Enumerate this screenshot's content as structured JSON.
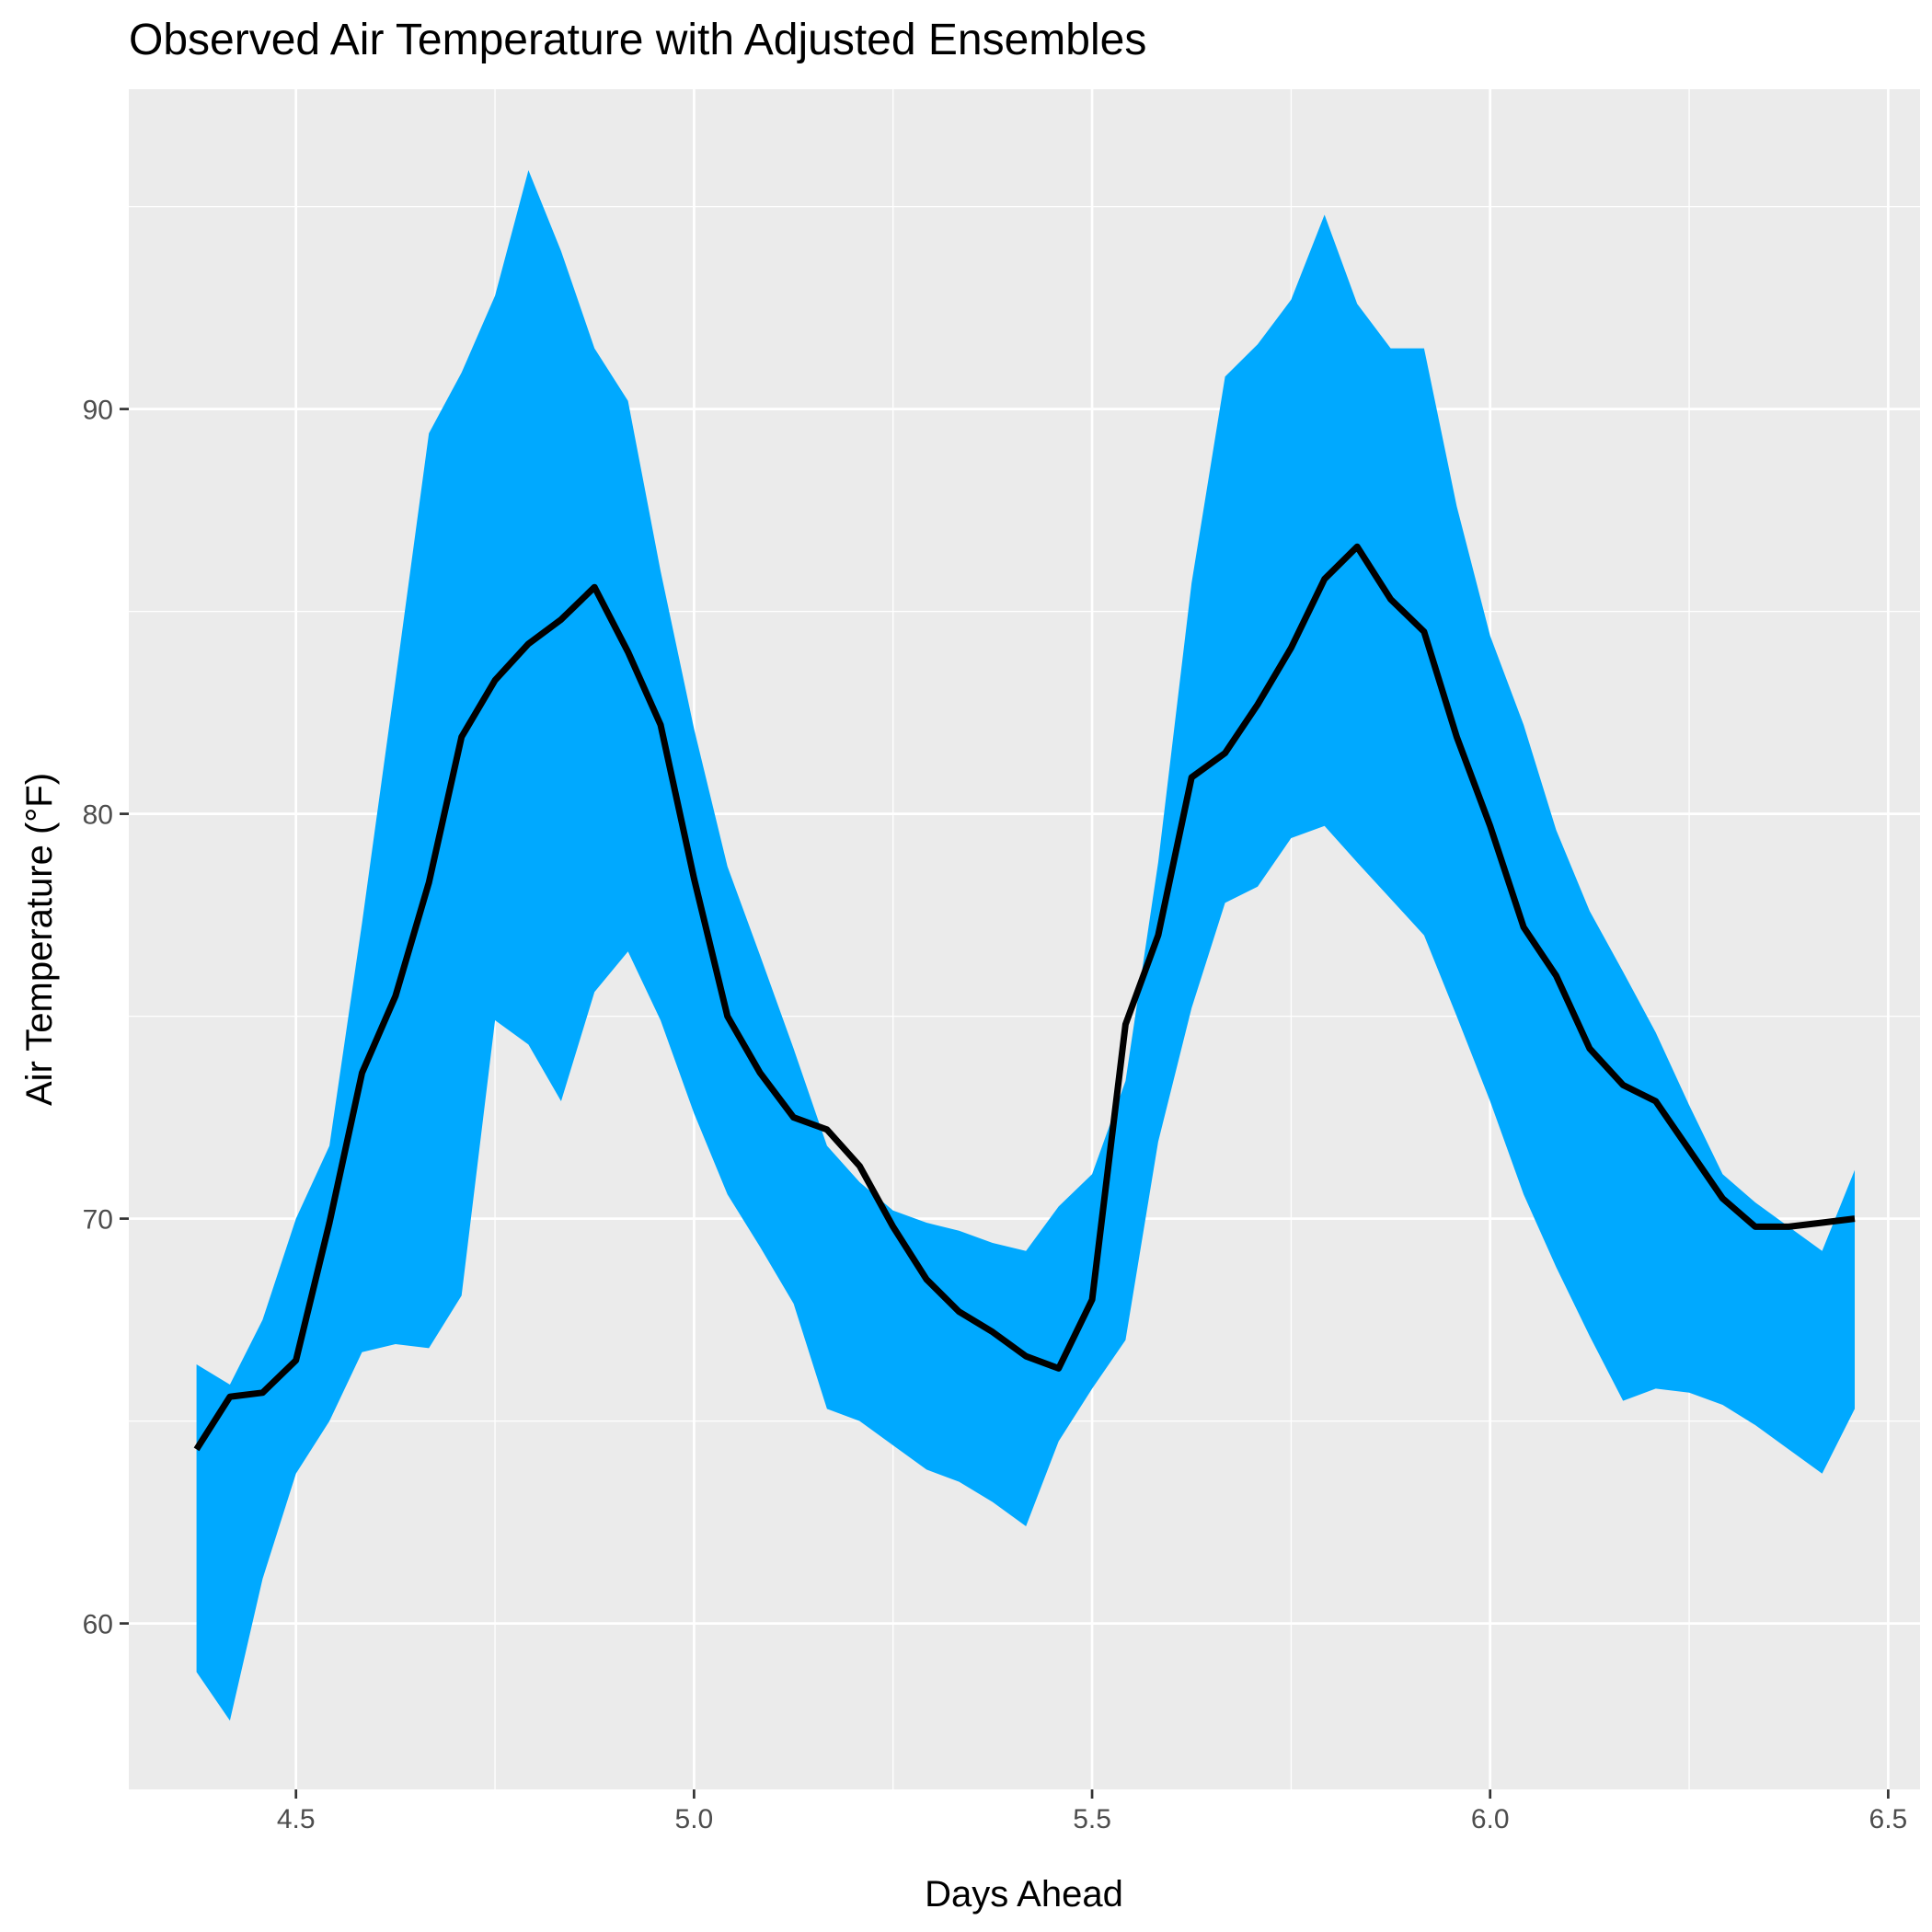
{
  "chart_data": {
    "type": "area",
    "title": "Observed Air Temperature with Adjusted Ensembles",
    "xlabel": "Days Ahead",
    "ylabel": "Air Temperature (°F)",
    "xlim": [
      4.29,
      6.54
    ],
    "ylim": [
      55.9,
      97.9
    ],
    "x_ticks": [
      4.5,
      5.0,
      5.5,
      6.0,
      6.5
    ],
    "x_tick_labels": [
      "4.5",
      "5.0",
      "5.5",
      "6.0",
      "6.5"
    ],
    "y_ticks": [
      60,
      70,
      80,
      90
    ],
    "y_tick_labels": [
      "60",
      "70",
      "80",
      "90"
    ],
    "grid": true,
    "legend": "none",
    "colors": {
      "panel": "#ebebeb",
      "grid": "#ffffff",
      "band": "#00a9ff",
      "line": "#000000",
      "tick_text": "#4d4d4d",
      "tick_mark": "#333333"
    },
    "band": {
      "name": "Adjusted Ensembles",
      "x": [
        4.375,
        4.417,
        4.458,
        4.5,
        4.542,
        4.583,
        4.625,
        4.667,
        4.708,
        4.75,
        4.792,
        4.833,
        4.875,
        4.917,
        4.958,
        5.0,
        5.042,
        5.083,
        5.125,
        5.167,
        5.208,
        5.25,
        5.292,
        5.333,
        5.375,
        5.417,
        5.458,
        5.5,
        5.542,
        5.583,
        5.625,
        5.667,
        5.708,
        5.75,
        5.792,
        5.833,
        5.875,
        5.917,
        5.958,
        6.0,
        6.042,
        6.083,
        6.125,
        6.167,
        6.208,
        6.25,
        6.292,
        6.333,
        6.375,
        6.417,
        6.458
      ],
      "upper": [
        66.4,
        65.9,
        67.5,
        70.0,
        71.8,
        77.3,
        83.3,
        89.4,
        90.9,
        92.8,
        95.9,
        93.9,
        91.5,
        90.2,
        86.0,
        82.1,
        78.7,
        76.5,
        74.2,
        71.8,
        70.9,
        70.2,
        69.9,
        69.7,
        69.4,
        69.2,
        70.3,
        71.1,
        73.4,
        78.8,
        85.7,
        90.8,
        91.6,
        92.7,
        94.8,
        92.6,
        91.5,
        91.5,
        87.6,
        84.4,
        82.2,
        79.6,
        77.6,
        76.1,
        74.6,
        72.8,
        71.1,
        70.4,
        69.8,
        69.2,
        71.2
      ],
      "lower": [
        58.8,
        57.6,
        61.1,
        63.7,
        65.0,
        66.7,
        66.9,
        66.8,
        68.1,
        74.9,
        74.3,
        72.9,
        75.6,
        76.6,
        74.9,
        72.6,
        70.6,
        69.3,
        67.9,
        65.3,
        65.0,
        64.4,
        63.8,
        63.5,
        63.0,
        62.4,
        64.5,
        65.8,
        67.0,
        71.9,
        75.2,
        77.8,
        78.2,
        79.4,
        79.7,
        78.8,
        77.9,
        77.0,
        75.0,
        72.9,
        70.6,
        68.8,
        67.1,
        65.5,
        65.8,
        65.7,
        65.4,
        64.9,
        64.3,
        63.7,
        65.3
      ]
    },
    "series": [
      {
        "name": "Observed",
        "x": [
          4.375,
          4.417,
          4.458,
          4.5,
          4.542,
          4.583,
          4.625,
          4.667,
          4.708,
          4.75,
          4.792,
          4.833,
          4.875,
          4.917,
          4.958,
          5.0,
          5.042,
          5.083,
          5.125,
          5.167,
          5.208,
          5.25,
          5.292,
          5.333,
          5.375,
          5.417,
          5.458,
          5.5,
          5.542,
          5.583,
          5.625,
          5.667,
          5.708,
          5.75,
          5.792,
          5.833,
          5.875,
          5.917,
          5.958,
          6.0,
          6.042,
          6.083,
          6.125,
          6.167,
          6.208,
          6.25,
          6.292,
          6.333,
          6.375,
          6.417,
          6.458
        ],
        "values": [
          64.3,
          65.6,
          65.7,
          66.5,
          69.9,
          73.6,
          75.5,
          78.3,
          81.9,
          83.3,
          84.2,
          84.8,
          85.6,
          84.0,
          82.2,
          78.4,
          75.0,
          73.6,
          72.5,
          72.2,
          71.3,
          69.8,
          68.5,
          67.7,
          67.2,
          66.6,
          66.3,
          68.0,
          74.8,
          77.0,
          80.9,
          81.5,
          82.7,
          84.1,
          85.8,
          86.6,
          85.3,
          84.5,
          81.9,
          79.7,
          77.2,
          76.0,
          74.2,
          73.3,
          72.9,
          71.7,
          70.5,
          69.8,
          69.8,
          69.9,
          70.0
        ]
      }
    ]
  }
}
